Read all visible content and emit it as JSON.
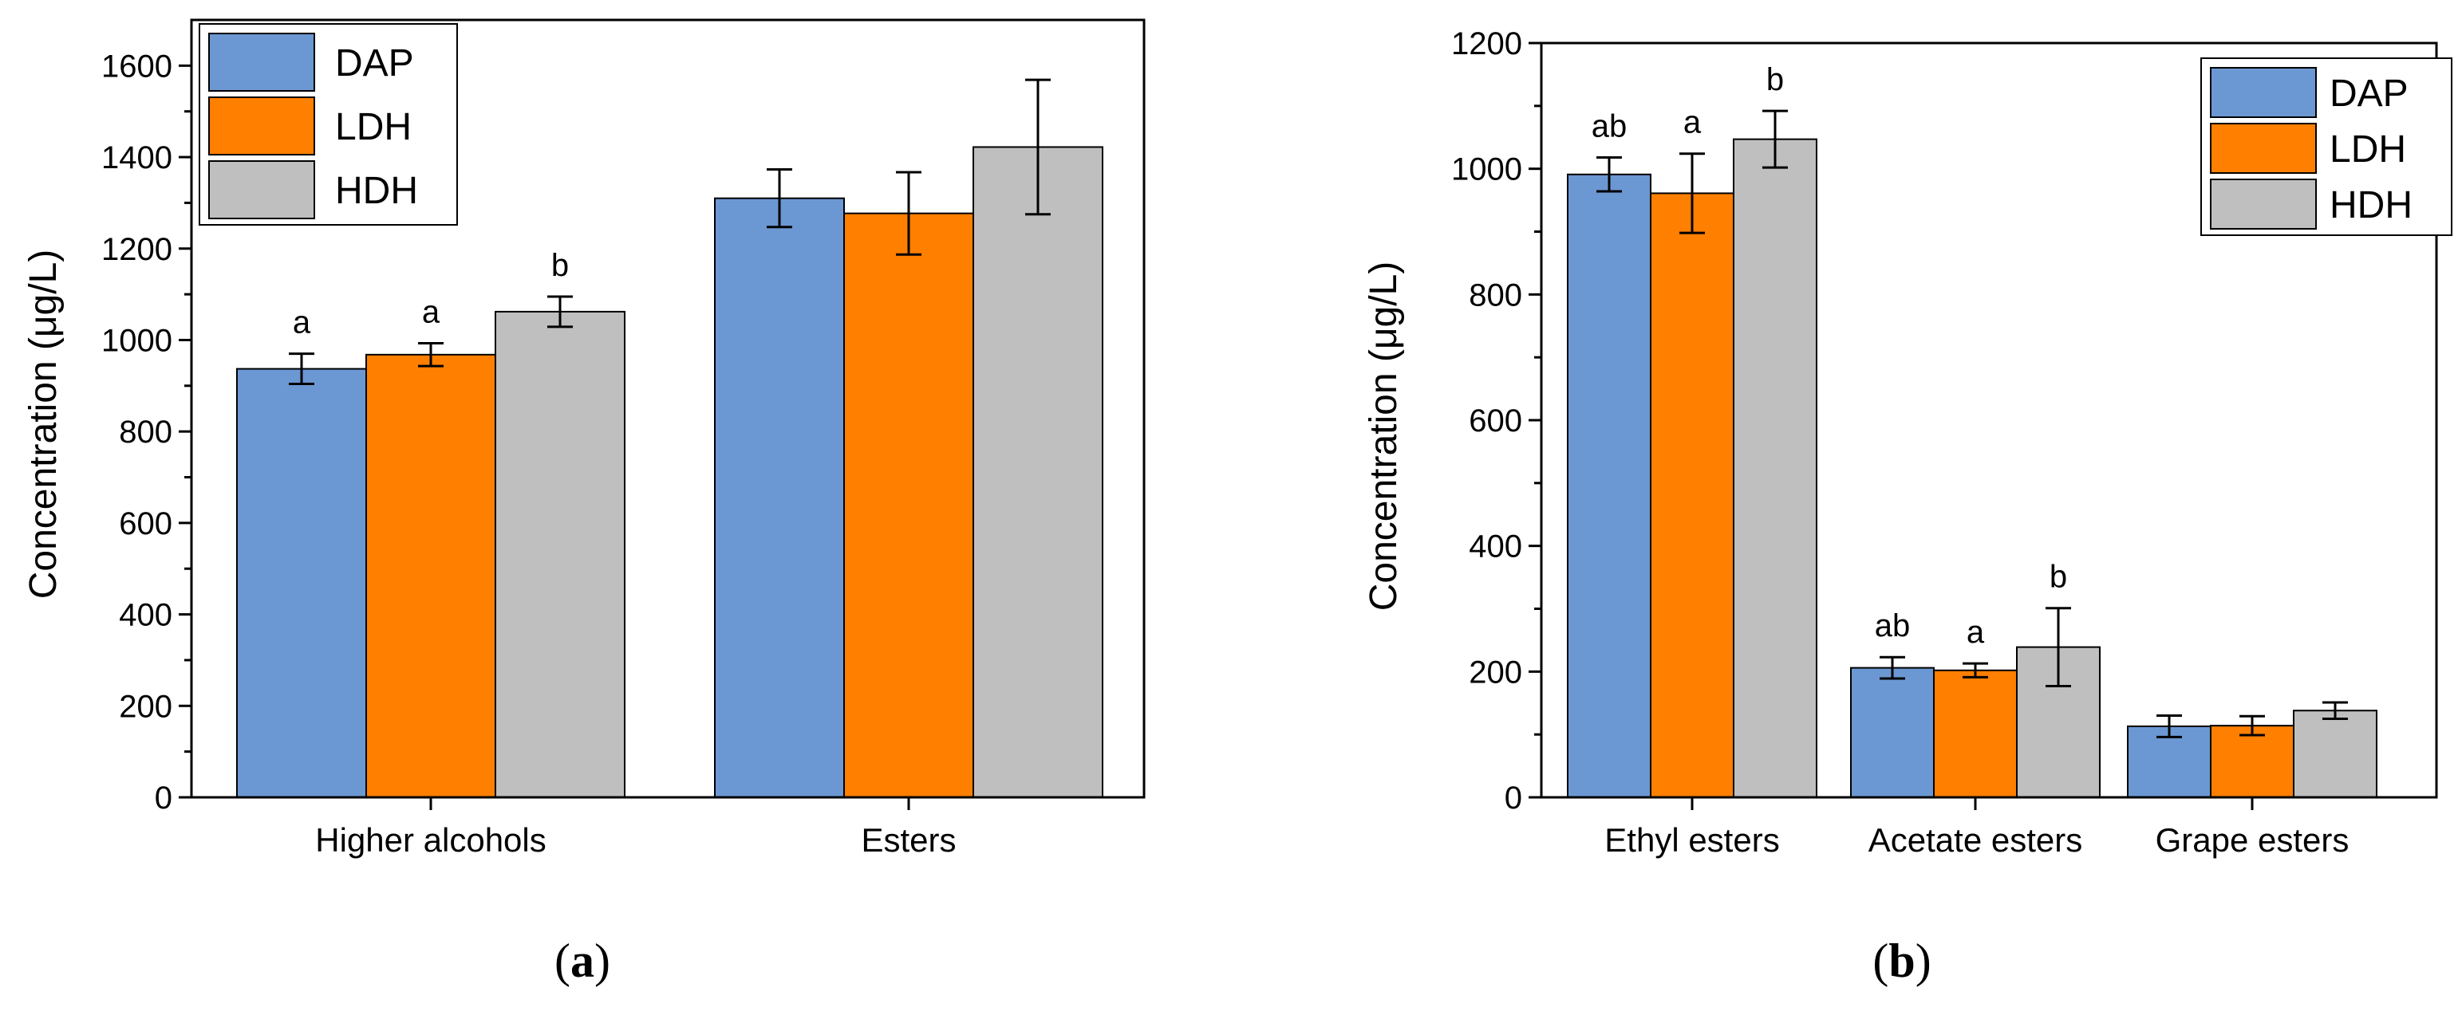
{
  "colors": {
    "DAP": "#6b98d2",
    "LDH": "#ff7f00",
    "HDH": "#bfbfbf"
  },
  "chart_data": [
    {
      "type": "bar",
      "panel_label": "a",
      "ylabel": "Concentration (μg/L)",
      "ylim": [
        0,
        1700
      ],
      "yticks": [
        0,
        200,
        400,
        600,
        800,
        1000,
        1200,
        1400,
        1600
      ],
      "categories": [
        "Higher alcohols",
        "Esters"
      ],
      "legend_position": "top-left",
      "series": [
        {
          "name": "DAP",
          "values": [
            937,
            1310
          ],
          "errors": [
            33,
            63
          ],
          "sig": [
            "a",
            ""
          ]
        },
        {
          "name": "LDH",
          "values": [
            968,
            1277
          ],
          "errors": [
            25,
            90
          ],
          "sig": [
            "a",
            ""
          ]
        },
        {
          "name": "HDH",
          "values": [
            1062,
            1422
          ],
          "errors": [
            33,
            147
          ],
          "sig": [
            "b",
            ""
          ]
        }
      ]
    },
    {
      "type": "bar",
      "panel_label": "b",
      "ylabel": "Concentration (μg/L)",
      "ylim": [
        0,
        1200
      ],
      "yticks": [
        0,
        200,
        400,
        600,
        800,
        1000,
        1200
      ],
      "categories": [
        "Ethyl esters",
        "Acetate esters",
        "Grape esters"
      ],
      "legend_position": "top-right",
      "series": [
        {
          "name": "DAP",
          "values": [
            991,
            206,
            113
          ],
          "errors": [
            27,
            17,
            17
          ],
          "sig": [
            "ab",
            "ab",
            ""
          ]
        },
        {
          "name": "LDH",
          "values": [
            961,
            202,
            114
          ],
          "errors": [
            63,
            11,
            15
          ],
          "sig": [
            "a",
            "a",
            ""
          ]
        },
        {
          "name": "HDH",
          "values": [
            1047,
            239,
            138
          ],
          "errors": [
            45,
            62,
            13
          ],
          "sig": [
            "b",
            "b",
            ""
          ]
        }
      ]
    }
  ]
}
